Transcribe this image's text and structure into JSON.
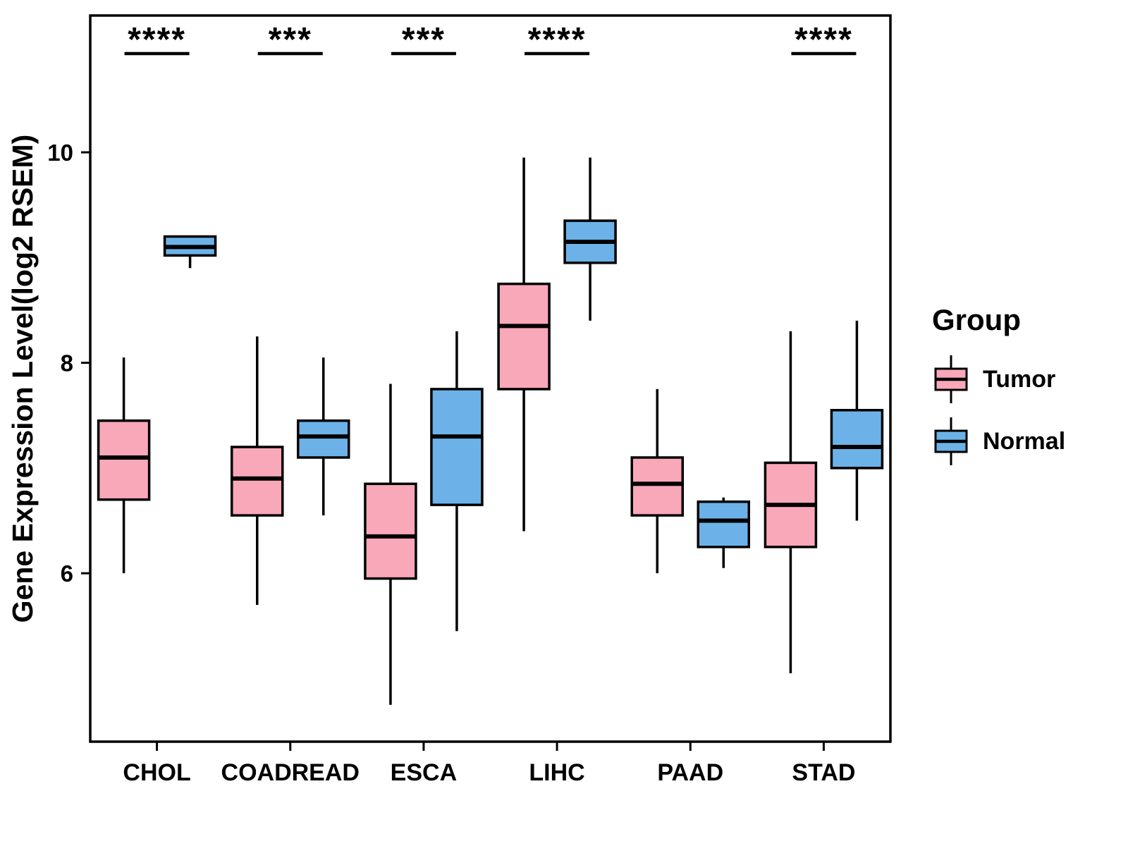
{
  "chart_data": {
    "type": "boxplot",
    "title": "",
    "xlabel": "",
    "ylabel": "Gene Expression Level(log2 RSEM)",
    "ylim": [
      4.4,
      11.3
    ],
    "yticks": [
      6,
      8,
      10
    ],
    "grid": false,
    "panel_border": true,
    "categories": [
      "CHOL",
      "COADREAD",
      "ESCA",
      "LIHC",
      "PAAD",
      "STAD"
    ],
    "colors": {
      "tumor": "#F8A8B8",
      "normal": "#6CB2E8",
      "stroke": "#000000",
      "background": "#FFFFFF"
    },
    "legend": {
      "title": "Group",
      "position": "right",
      "entries": [
        {
          "label": "Tumor",
          "color": "#F8A8B8"
        },
        {
          "label": "Normal",
          "color": "#6CB2E8"
        }
      ]
    },
    "significance": [
      {
        "category": "CHOL",
        "label": "****"
      },
      {
        "category": "COADREAD",
        "label": "***"
      },
      {
        "category": "ESCA",
        "label": "***"
      },
      {
        "category": "LIHC",
        "label": "****"
      },
      {
        "category": "STAD",
        "label": "****"
      }
    ],
    "series": [
      {
        "name": "Tumor",
        "color": "#F8A8B8",
        "boxes": [
          {
            "category": "CHOL",
            "whisker_low": 6.0,
            "q1": 6.7,
            "median": 7.1,
            "q3": 7.45,
            "whisker_high": 8.05
          },
          {
            "category": "COADREAD",
            "whisker_low": 5.7,
            "q1": 6.55,
            "median": 6.9,
            "q3": 7.2,
            "whisker_high": 8.25
          },
          {
            "category": "ESCA",
            "whisker_low": 4.75,
            "q1": 5.95,
            "median": 6.35,
            "q3": 6.85,
            "whisker_high": 7.8
          },
          {
            "category": "LIHC",
            "whisker_low": 6.4,
            "q1": 7.75,
            "median": 8.35,
            "q3": 8.75,
            "whisker_high": 9.95
          },
          {
            "category": "PAAD",
            "whisker_low": 6.0,
            "q1": 6.55,
            "median": 6.85,
            "q3": 7.1,
            "whisker_high": 7.75
          },
          {
            "category": "STAD",
            "whisker_low": 5.05,
            "q1": 6.25,
            "median": 6.65,
            "q3": 7.05,
            "whisker_high": 8.3
          }
        ]
      },
      {
        "name": "Normal",
        "color": "#6CB2E8",
        "boxes": [
          {
            "category": "CHOL",
            "whisker_low": 8.9,
            "q1": 9.02,
            "median": 9.1,
            "q3": 9.2,
            "whisker_high": 9.2
          },
          {
            "category": "COADREAD",
            "whisker_low": 6.55,
            "q1": 7.1,
            "median": 7.3,
            "q3": 7.45,
            "whisker_high": 8.05
          },
          {
            "category": "ESCA",
            "whisker_low": 5.45,
            "q1": 6.65,
            "median": 7.3,
            "q3": 7.75,
            "whisker_high": 8.3
          },
          {
            "category": "LIHC",
            "whisker_low": 8.4,
            "q1": 8.95,
            "median": 9.15,
            "q3": 9.35,
            "whisker_high": 9.95
          },
          {
            "category": "PAAD",
            "whisker_low": 6.05,
            "q1": 6.25,
            "median": 6.5,
            "q3": 6.68,
            "whisker_high": 6.72
          },
          {
            "category": "STAD",
            "whisker_low": 6.5,
            "q1": 7.0,
            "median": 7.2,
            "q3": 7.55,
            "whisker_high": 8.4
          }
        ]
      }
    ]
  }
}
